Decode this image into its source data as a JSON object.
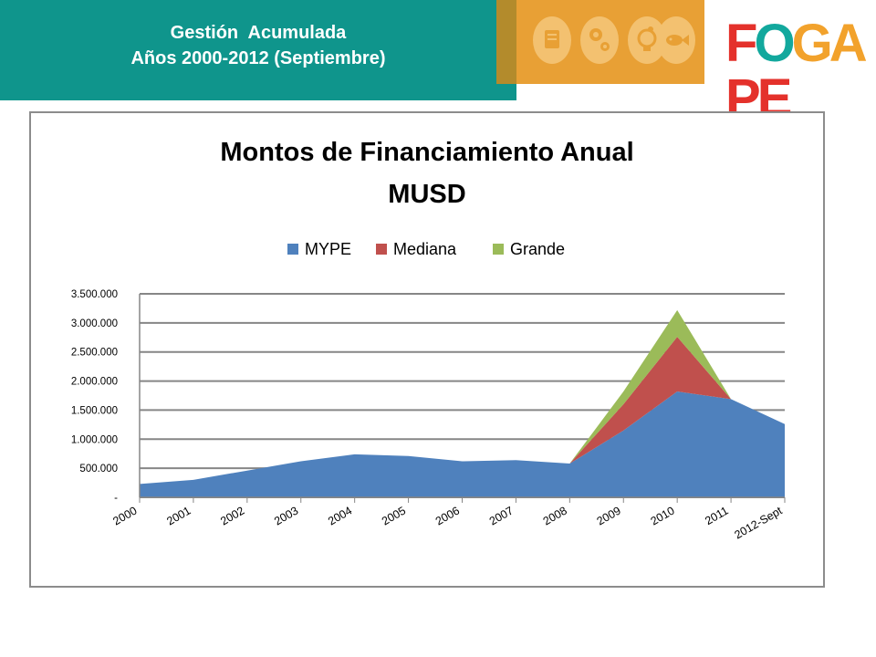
{
  "header": {
    "line1": "Gestión  Acumulada",
    "line2": "Años 2000-2012 (Septiembre)"
  },
  "logo": {
    "letters": [
      "F",
      "O",
      "G",
      "A",
      "P",
      "E"
    ],
    "colors": [
      "#e4312b",
      "#12a89d",
      "#f2a22c",
      "#f2a22c",
      "#e4312b",
      "#e4312b"
    ]
  },
  "icons": [
    "document-icon",
    "gears-icon",
    "bulb-icon",
    "fish-icon"
  ],
  "colors": {
    "header_band": "#0f958c",
    "mype": "#4f81bd",
    "mediana": "#c0504d",
    "grande": "#9bbb59"
  },
  "chart_data": {
    "type": "area",
    "stacked": true,
    "title_lines": [
      "Montos de Financiamiento  Anual",
      "MUSD"
    ],
    "xlabel": "",
    "ylabel": "",
    "categories": [
      "2000",
      "2001",
      "2002",
      "2003",
      "2004",
      "2005",
      "2006",
      "2007",
      "2008",
      "2009",
      "2010",
      "2011",
      "2012-Sept"
    ],
    "series": [
      {
        "name": "MYPE",
        "color": "#4f81bd",
        "values": [
          230000,
          300000,
          460000,
          620000,
          740000,
          710000,
          620000,
          640000,
          580000,
          1150000,
          1820000,
          1690000,
          1260000
        ]
      },
      {
        "name": "Mediana",
        "color": "#c0504d",
        "values": [
          0,
          0,
          0,
          0,
          0,
          0,
          0,
          0,
          0,
          450000,
          940000,
          0,
          0
        ]
      },
      {
        "name": "Grande",
        "color": "#9bbb59",
        "values": [
          0,
          0,
          0,
          0,
          0,
          0,
          0,
          0,
          0,
          220000,
          460000,
          0,
          0
        ]
      }
    ],
    "ylim": [
      0,
      3500000
    ],
    "yticks": [
      0,
      500000,
      1000000,
      1500000,
      2000000,
      2500000,
      3000000,
      3500000
    ],
    "ytick_labels": [
      "-",
      "500.000",
      "1.000.000",
      "1.500.000",
      "2.000.000",
      "2.500.000",
      "3.000.000",
      "3.500.000"
    ],
    "grid": true,
    "legend_position": "top"
  }
}
